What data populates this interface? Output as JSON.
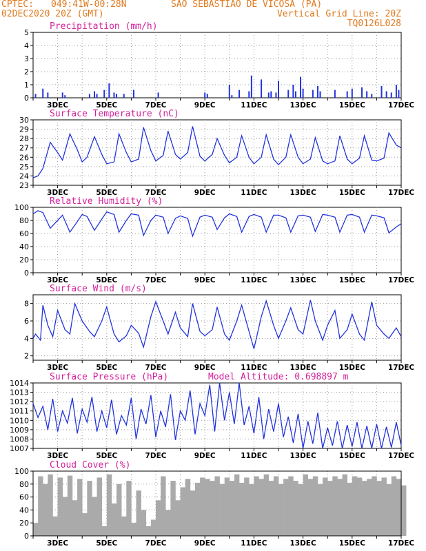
{
  "header": {
    "source": "CPTEC:",
    "coords": "049:41W-00:28N",
    "location": "SAO SEBASTIAO DE VICOSA (PA)",
    "datetime": "02DEC2020 20Z (GMT)",
    "grid_note": "Vertical Grid Line: 20Z",
    "code": "TQ0126L028"
  },
  "colors": {
    "line": "#2233dd",
    "bar": "#2233dd",
    "cloud": "#aaaaaa",
    "title": "#d4209a",
    "header": "#e07a1f",
    "grid": "#999999"
  },
  "chart_data": [
    {
      "type": "bar",
      "title": "Precipitation (mm/h)",
      "ylim": [
        0,
        5
      ],
      "yticks": [
        "0",
        "1",
        "2",
        "3",
        "4",
        "5"
      ],
      "xticks": [
        "3DEC",
        "5DEC",
        "7DEC",
        "9DEC",
        "11DEC",
        "13DEC",
        "15DEC",
        "17DEC"
      ],
      "x": [
        2.1,
        2.4,
        2.6,
        3.2,
        3.3,
        4.3,
        4.5,
        4.6,
        4.9,
        5.1,
        5.3,
        5.4,
        5.7,
        6.1,
        7.1,
        9.0,
        9.1,
        10.0,
        10.1,
        10.4,
        10.8,
        10.9,
        11.3,
        11.6,
        11.7,
        11.9,
        12.0,
        12.4,
        12.6,
        12.7,
        12.9,
        13.0,
        13.4,
        13.6,
        13.7,
        14.3,
        14.8,
        15.0,
        15.4,
        15.6,
        15.8,
        16.2,
        16.4,
        16.6,
        16.8,
        16.9
      ],
      "values": [
        0.3,
        0.7,
        0.4,
        0.4,
        0.2,
        0.3,
        0.5,
        0.3,
        0.6,
        1.1,
        0.4,
        0.3,
        0.3,
        0.6,
        0.4,
        0.4,
        0.3,
        1.0,
        0.2,
        0.6,
        0.5,
        1.7,
        1.4,
        0.4,
        0.5,
        0.4,
        1.3,
        0.6,
        1.0,
        0.5,
        1.6,
        0.7,
        0.6,
        0.9,
        0.5,
        0.6,
        0.5,
        0.7,
        0.8,
        0.5,
        0.3,
        0.9,
        0.5,
        0.4,
        1.0,
        0.6
      ]
    },
    {
      "type": "line",
      "title": "Surface Temperature (nC)",
      "ylim": [
        23,
        30
      ],
      "yticks": [
        "23",
        "24",
        "25",
        "26",
        "27",
        "28",
        "29",
        "30"
      ],
      "xticks": [
        "3DEC",
        "5DEC",
        "7DEC",
        "9DEC",
        "11DEC",
        "13DEC",
        "15DEC",
        "17DEC"
      ],
      "x": [
        2.0,
        2.2,
        2.4,
        2.7,
        3.0,
        3.2,
        3.5,
        3.8,
        4.0,
        4.2,
        4.5,
        4.8,
        5.0,
        5.3,
        5.5,
        5.8,
        6.0,
        6.3,
        6.5,
        6.8,
        7.0,
        7.3,
        7.5,
        7.8,
        8.0,
        8.3,
        8.5,
        8.8,
        9.0,
        9.3,
        9.5,
        9.8,
        10.0,
        10.3,
        10.5,
        10.8,
        11.0,
        11.3,
        11.5,
        11.8,
        12.0,
        12.3,
        12.5,
        12.8,
        13.0,
        13.3,
        13.5,
        13.8,
        14.0,
        14.3,
        14.5,
        14.8,
        15.0,
        15.3,
        15.5,
        15.8,
        16.0,
        16.3,
        16.5,
        16.8,
        17.0
      ],
      "values": [
        23.8,
        24.0,
        24.8,
        27.6,
        26.5,
        25.7,
        28.5,
        26.8,
        25.5,
        26.0,
        28.2,
        26.3,
        25.3,
        25.5,
        28.5,
        26.5,
        25.5,
        25.8,
        29.2,
        26.7,
        25.6,
        26.2,
        28.8,
        26.3,
        25.8,
        26.5,
        29.3,
        26.1,
        25.6,
        26.3,
        28.0,
        26.2,
        25.4,
        26.0,
        28.3,
        26.0,
        25.3,
        26.0,
        28.4,
        25.8,
        25.2,
        26.0,
        28.4,
        26.0,
        25.3,
        25.8,
        28.1,
        25.6,
        25.3,
        25.6,
        28.3,
        25.8,
        25.3,
        25.9,
        28.3,
        25.7,
        25.6,
        25.9,
        28.6,
        27.3,
        27.0
      ]
    },
    {
      "type": "line",
      "title": "Relative Humidity (%)",
      "ylim": [
        0,
        100
      ],
      "yticks": [
        "0",
        "20",
        "40",
        "60",
        "80",
        "100"
      ],
      "xticks": [
        "3DEC",
        "5DEC",
        "7DEC",
        "9DEC",
        "11DEC",
        "13DEC",
        "15DEC",
        "17DEC"
      ],
      "x": [
        2.0,
        2.2,
        2.4,
        2.7,
        3.0,
        3.2,
        3.5,
        3.8,
        4.0,
        4.2,
        4.5,
        4.8,
        5.0,
        5.3,
        5.5,
        5.8,
        6.0,
        6.3,
        6.5,
        6.8,
        7.0,
        7.3,
        7.5,
        7.8,
        8.0,
        8.3,
        8.5,
        8.8,
        9.0,
        9.3,
        9.5,
        9.8,
        10.0,
        10.3,
        10.5,
        10.8,
        11.0,
        11.3,
        11.5,
        11.8,
        12.0,
        12.3,
        12.5,
        12.8,
        13.0,
        13.3,
        13.5,
        13.8,
        14.0,
        14.3,
        14.5,
        14.8,
        15.0,
        15.3,
        15.5,
        15.8,
        16.0,
        16.3,
        16.5,
        16.8,
        17.0
      ],
      "values": [
        90,
        95,
        92,
        68,
        80,
        88,
        62,
        78,
        89,
        86,
        65,
        82,
        93,
        89,
        62,
        80,
        90,
        88,
        57,
        80,
        88,
        85,
        60,
        83,
        87,
        83,
        56,
        85,
        88,
        85,
        66,
        84,
        90,
        86,
        62,
        86,
        89,
        85,
        62,
        88,
        88,
        84,
        62,
        87,
        88,
        85,
        63,
        89,
        88,
        85,
        62,
        88,
        89,
        85,
        62,
        88,
        87,
        84,
        61,
        70,
        75
      ]
    },
    {
      "type": "line",
      "title": "Surface Wind (m/s)",
      "ylim": [
        1.5,
        9
      ],
      "yticks": [
        "2",
        "4",
        "6",
        "8"
      ],
      "xticks": [
        "3DEC",
        "5DEC",
        "7DEC",
        "9DEC",
        "11DEC",
        "13DEC",
        "15DEC",
        "17DEC"
      ],
      "x": [
        2.0,
        2.1,
        2.3,
        2.4,
        2.6,
        2.8,
        3.0,
        3.3,
        3.5,
        3.7,
        4.0,
        4.3,
        4.5,
        4.8,
        5.0,
        5.3,
        5.5,
        5.8,
        6.0,
        6.3,
        6.5,
        6.8,
        7.0,
        7.3,
        7.5,
        7.8,
        8.0,
        8.3,
        8.5,
        8.8,
        9.0,
        9.3,
        9.5,
        9.8,
        10.0,
        10.3,
        10.5,
        10.8,
        11.0,
        11.3,
        11.5,
        11.8,
        12.0,
        12.3,
        12.5,
        12.8,
        13.0,
        13.3,
        13.5,
        13.8,
        14.0,
        14.3,
        14.5,
        14.8,
        15.0,
        15.3,
        15.5,
        15.8,
        16.0,
        16.3,
        16.5,
        16.8,
        17.0
      ],
      "values": [
        4.0,
        4.5,
        3.8,
        7.8,
        5.5,
        4.2,
        7.2,
        5.0,
        4.5,
        8.0,
        6.0,
        4.8,
        4.2,
        6.0,
        7.6,
        4.5,
        3.6,
        4.3,
        5.5,
        4.6,
        3.0,
        6.5,
        8.2,
        6.0,
        4.5,
        7.0,
        5.2,
        4.2,
        8.0,
        4.8,
        4.3,
        5.0,
        7.6,
        4.5,
        3.8,
        6.0,
        7.8,
        4.8,
        2.8,
        6.5,
        8.3,
        5.5,
        4.0,
        6.0,
        7.5,
        5.0,
        4.5,
        8.4,
        6.0,
        3.8,
        5.5,
        7.2,
        4.0,
        5.0,
        6.8,
        4.5,
        3.8,
        8.2,
        5.5,
        4.5,
        4.0,
        5.2,
        4.2
      ]
    },
    {
      "type": "line",
      "title": "Surface Pressure (hPa)",
      "annotation": "Model Altitude: 0.698897 m",
      "ylim": [
        1007,
        1014
      ],
      "yticks": [
        "1007",
        "1008",
        "1009",
        "1010",
        "1011",
        "1012",
        "1013",
        "1014"
      ],
      "xticks": [
        "3DEC",
        "5DEC",
        "7DEC",
        "9DEC",
        "11DEC",
        "13DEC",
        "15DEC",
        "17DEC"
      ],
      "x": [
        2.0,
        2.2,
        2.4,
        2.6,
        2.8,
        3.0,
        3.2,
        3.4,
        3.6,
        3.8,
        4.0,
        4.2,
        4.4,
        4.6,
        4.8,
        5.0,
        5.2,
        5.4,
        5.6,
        5.8,
        6.0,
        6.2,
        6.4,
        6.6,
        6.8,
        7.0,
        7.2,
        7.4,
        7.6,
        7.8,
        8.0,
        8.2,
        8.4,
        8.6,
        8.8,
        9.0,
        9.2,
        9.4,
        9.6,
        9.8,
        10.0,
        10.2,
        10.4,
        10.6,
        10.8,
        11.0,
        11.2,
        11.4,
        11.6,
        11.8,
        12.0,
        12.2,
        12.4,
        12.6,
        12.8,
        13.0,
        13.2,
        13.4,
        13.6,
        13.8,
        14.0,
        14.2,
        14.4,
        14.6,
        14.8,
        15.0,
        15.2,
        15.4,
        15.6,
        15.8,
        16.0,
        16.2,
        16.4,
        16.6,
        16.8,
        17.0
      ],
      "values": [
        1011.8,
        1010.3,
        1011.5,
        1009.0,
        1012.3,
        1008.8,
        1011.0,
        1009.7,
        1012.4,
        1008.6,
        1011.2,
        1009.8,
        1012.5,
        1008.8,
        1011.0,
        1009.2,
        1012.2,
        1008.5,
        1010.5,
        1009.5,
        1012.4,
        1008.0,
        1011.2,
        1009.6,
        1012.7,
        1008.2,
        1011.0,
        1009.3,
        1012.8,
        1007.9,
        1011.0,
        1010.0,
        1013.2,
        1008.5,
        1011.8,
        1010.5,
        1013.8,
        1008.8,
        1014.2,
        1010.0,
        1013.0,
        1009.6,
        1014.1,
        1009.5,
        1011.5,
        1008.6,
        1012.5,
        1008.0,
        1011.2,
        1008.8,
        1011.8,
        1008.2,
        1010.4,
        1007.6,
        1010.7,
        1006.8,
        1009.9,
        1007.5,
        1010.8,
        1006.6,
        1009.2,
        1007.3,
        1009.9,
        1007.0,
        1009.5,
        1007.2,
        1009.8,
        1006.9,
        1009.4,
        1007.0,
        1009.6,
        1006.8,
        1009.3,
        1007.1,
        1009.8,
        1007.3
      ]
    },
    {
      "type": "area",
      "title": "Cloud Cover (%)",
      "ylim": [
        0,
        100
      ],
      "yticks": [
        "0",
        "20",
        "40",
        "60",
        "80",
        "100"
      ],
      "xticks": [
        "3DEC",
        "5DEC",
        "7DEC",
        "9DEC",
        "11DEC",
        "13DEC",
        "15DEC",
        "17DEC"
      ],
      "x": [
        2.0,
        2.2,
        2.4,
        2.6,
        2.8,
        3.0,
        3.2,
        3.4,
        3.6,
        3.8,
        4.0,
        4.2,
        4.4,
        4.6,
        4.8,
        5.0,
        5.2,
        5.4,
        5.6,
        5.8,
        6.0,
        6.2,
        6.4,
        6.6,
        6.8,
        7.0,
        7.2,
        7.4,
        7.6,
        7.8,
        8.0,
        8.2,
        8.4,
        8.6,
        8.8,
        9.0,
        9.2,
        9.4,
        9.6,
        9.8,
        10.0,
        10.2,
        10.4,
        10.6,
        10.8,
        11.0,
        11.2,
        11.4,
        11.6,
        11.8,
        12.0,
        12.2,
        12.4,
        12.6,
        12.8,
        13.0,
        13.2,
        13.4,
        13.6,
        13.8,
        14.0,
        14.2,
        14.4,
        14.6,
        14.8,
        15.0,
        15.2,
        15.4,
        15.6,
        15.8,
        16.0,
        16.2,
        16.4,
        16.6,
        16.8,
        17.0
      ],
      "values": [
        20,
        92,
        80,
        95,
        30,
        90,
        60,
        93,
        55,
        88,
        35,
        85,
        60,
        90,
        15,
        95,
        50,
        80,
        30,
        85,
        20,
        70,
        40,
        15,
        25,
        55,
        92,
        40,
        85,
        55,
        75,
        88,
        70,
        82,
        90,
        88,
        85,
        92,
        80,
        90,
        85,
        95,
        82,
        90,
        80,
        92,
        88,
        95,
        85,
        92,
        80,
        88,
        92,
        85,
        80,
        95,
        88,
        92,
        80,
        90,
        85,
        92,
        88,
        95,
        82,
        92,
        90,
        85,
        88,
        92,
        85,
        90,
        80,
        92,
        88,
        78
      ]
    }
  ]
}
